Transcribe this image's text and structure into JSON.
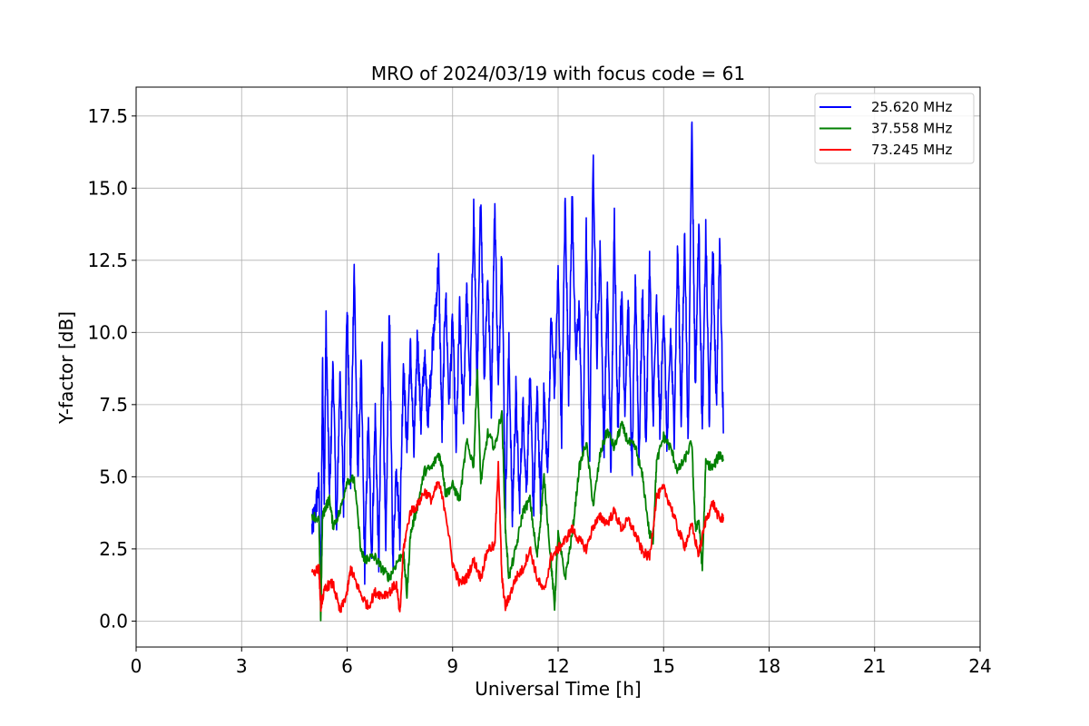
{
  "chart_data": {
    "type": "line",
    "title": "MRO of 2024/03/19 with focus code = 61",
    "xlabel": "Universal Time [h]",
    "ylabel": "Y-factor [dB]",
    "xlim": [
      0,
      24
    ],
    "ylim": [
      -0.9,
      18.5
    ],
    "xticks": [
      0,
      3,
      6,
      9,
      12,
      15,
      18,
      21,
      24
    ],
    "yticks": [
      0.0,
      2.5,
      5.0,
      7.5,
      10.0,
      12.5,
      15.0,
      17.5
    ],
    "xtick_labels": [
      "0",
      "3",
      "6",
      "9",
      "12",
      "15",
      "18",
      "21",
      "24"
    ],
    "ytick_labels": [
      "0.0",
      "2.5",
      "5.0",
      "7.5",
      "10.0",
      "12.5",
      "15.0",
      "17.5"
    ],
    "grid": true,
    "legend_position": "top-right",
    "series": [
      {
        "name": "25.620 MHz",
        "color": "#0000ff",
        "x": [
          5.0,
          5.1,
          5.2,
          5.25,
          5.3,
          5.35,
          5.4,
          5.5,
          5.6,
          5.7,
          5.8,
          5.9,
          6.0,
          6.1,
          6.2,
          6.3,
          6.4,
          6.5,
          6.6,
          6.7,
          6.8,
          6.9,
          7.0,
          7.1,
          7.2,
          7.3,
          7.4,
          7.5,
          7.6,
          7.7,
          7.8,
          7.9,
          8.0,
          8.1,
          8.2,
          8.3,
          8.4,
          8.5,
          8.6,
          8.7,
          8.8,
          8.9,
          9.0,
          9.1,
          9.2,
          9.3,
          9.4,
          9.5,
          9.6,
          9.7,
          9.8,
          9.9,
          10.0,
          10.1,
          10.2,
          10.3,
          10.4,
          10.5,
          10.6,
          10.7,
          10.8,
          10.9,
          11.0,
          11.1,
          11.2,
          11.3,
          11.4,
          11.5,
          11.6,
          11.7,
          11.8,
          11.9,
          12.0,
          12.1,
          12.2,
          12.3,
          12.4,
          12.5,
          12.6,
          12.7,
          12.8,
          12.9,
          13.0,
          13.1,
          13.2,
          13.3,
          13.4,
          13.5,
          13.6,
          13.7,
          13.8,
          13.9,
          14.0,
          14.1,
          14.2,
          14.3,
          14.4,
          14.5,
          14.6,
          14.7,
          14.8,
          14.9,
          15.0,
          15.1,
          15.2,
          15.3,
          15.4,
          15.5,
          15.6,
          15.7,
          15.8,
          15.9,
          16.0,
          16.1,
          16.2,
          16.3,
          16.4,
          16.5,
          16.6,
          16.7
        ],
        "y": [
          3.2,
          3.8,
          4.8,
          0.3,
          9.0,
          4.0,
          10.3,
          4.2,
          9.0,
          3.0,
          8.8,
          4.0,
          11.0,
          4.8,
          12.4,
          5.0,
          8.8,
          1.8,
          7.0,
          2.2,
          7.2,
          2.0,
          9.9,
          2.2,
          11.0,
          2.0,
          5.5,
          3.0,
          9.0,
          6.0,
          9.5,
          5.8,
          10.0,
          6.8,
          9.2,
          7.0,
          9.0,
          10.5,
          12.4,
          6.5,
          11.5,
          7.5,
          10.5,
          6.0,
          10.8,
          7.0,
          11.5,
          8.0,
          14.3,
          8.0,
          14.9,
          8.5,
          12.0,
          7.5,
          14.5,
          8.0,
          13.1,
          4.0,
          9.5,
          3.5,
          8.0,
          4.0,
          7.5,
          4.5,
          8.5,
          3.8,
          8.0,
          4.2,
          8.0,
          5.0,
          10.5,
          8.0,
          12.0,
          6.5,
          14.7,
          8.0,
          14.8,
          9.0,
          11.0,
          5.2,
          13.5,
          6.0,
          16.1,
          9.0,
          13.0,
          5.8,
          11.5,
          5.2,
          14.0,
          6.5,
          11.5,
          7.5,
          11.0,
          5.0,
          12.0,
          5.5,
          11.5,
          6.0,
          12.5,
          7.0,
          11.0,
          6.5,
          11.0,
          6.0,
          10.0,
          6.5,
          13.0,
          7.0,
          13.5,
          6.0,
          17.6,
          8.0,
          13.8,
          6.5,
          13.5,
          7.0,
          13.0,
          7.5,
          13.3,
          6.5
        ],
        "mode": "spiky"
      },
      {
        "name": "37.558 MHz",
        "color": "#008000",
        "x": [
          5.0,
          5.2,
          5.25,
          5.3,
          5.4,
          5.5,
          5.6,
          5.8,
          6.0,
          6.2,
          6.4,
          6.5,
          6.6,
          6.8,
          7.0,
          7.2,
          7.4,
          7.6,
          7.7,
          7.8,
          8.0,
          8.2,
          8.4,
          8.6,
          8.7,
          8.8,
          9.0,
          9.2,
          9.4,
          9.6,
          9.7,
          9.8,
          10.0,
          10.2,
          10.4,
          10.5,
          10.6,
          10.8,
          11.0,
          11.2,
          11.4,
          11.5,
          11.6,
          11.8,
          11.9,
          12.0,
          12.2,
          12.4,
          12.6,
          12.8,
          13.0,
          13.2,
          13.4,
          13.6,
          13.8,
          14.0,
          14.2,
          14.4,
          14.6,
          14.7,
          14.8,
          15.0,
          15.2,
          15.4,
          15.6,
          15.8,
          15.9,
          16.0,
          16.1,
          16.2,
          16.4,
          16.6,
          16.7
        ],
        "y": [
          3.7,
          3.5,
          0.1,
          3.6,
          4.0,
          4.2,
          3.3,
          3.8,
          4.9,
          4.9,
          2.4,
          2.1,
          2.2,
          2.2,
          1.8,
          1.5,
          2.0,
          2.4,
          0.9,
          3.0,
          4.0,
          5.2,
          5.3,
          5.8,
          5.4,
          4.4,
          4.7,
          4.2,
          6.2,
          5.4,
          8.8,
          4.8,
          6.5,
          6.0,
          7.3,
          3.2,
          1.5,
          2.5,
          3.8,
          4.2,
          2.2,
          3.5,
          5.0,
          2.0,
          0.5,
          3.0,
          1.5,
          3.0,
          5.3,
          6.2,
          4.0,
          5.8,
          6.6,
          6.0,
          6.8,
          6.2,
          6.0,
          5.0,
          3.0,
          2.8,
          5.5,
          6.4,
          6.0,
          5.2,
          5.6,
          6.2,
          3.2,
          3.5,
          1.8,
          5.5,
          5.3,
          5.8,
          5.6
        ],
        "mode": "noisy"
      },
      {
        "name": "73.245 MHz",
        "color": "#ff0000",
        "x": [
          5.0,
          5.2,
          5.25,
          5.3,
          5.4,
          5.6,
          5.8,
          6.0,
          6.1,
          6.2,
          6.4,
          6.6,
          6.8,
          7.0,
          7.2,
          7.4,
          7.5,
          7.6,
          7.8,
          8.0,
          8.2,
          8.4,
          8.6,
          8.8,
          9.0,
          9.2,
          9.4,
          9.6,
          9.8,
          10.0,
          10.2,
          10.3,
          10.4,
          10.5,
          10.6,
          10.8,
          11.0,
          11.2,
          11.4,
          11.6,
          11.8,
          12.0,
          12.2,
          12.4,
          12.6,
          12.8,
          13.0,
          13.2,
          13.4,
          13.6,
          13.8,
          14.0,
          14.2,
          14.4,
          14.6,
          14.8,
          15.0,
          15.2,
          15.4,
          15.6,
          15.8,
          16.0,
          16.2,
          16.4,
          16.6,
          16.7
        ],
        "y": [
          1.7,
          1.8,
          0.5,
          0.8,
          1.2,
          1.3,
          0.3,
          1.0,
          1.8,
          1.5,
          0.9,
          0.5,
          1.0,
          0.9,
          1.0,
          1.3,
          0.2,
          2.5,
          3.8,
          4.0,
          4.5,
          4.2,
          4.8,
          3.8,
          2.0,
          1.3,
          1.5,
          2.1,
          1.5,
          2.5,
          2.6,
          5.5,
          1.5,
          0.5,
          0.8,
          1.5,
          1.8,
          2.5,
          1.5,
          1.0,
          2.2,
          2.5,
          2.8,
          3.2,
          2.8,
          2.5,
          3.3,
          3.6,
          3.4,
          3.8,
          3.2,
          3.5,
          3.0,
          2.4,
          2.2,
          4.3,
          4.6,
          4.0,
          3.2,
          2.6,
          3.3,
          2.3,
          3.5,
          4.1,
          3.5,
          3.6
        ],
        "mode": "noisy"
      }
    ]
  }
}
